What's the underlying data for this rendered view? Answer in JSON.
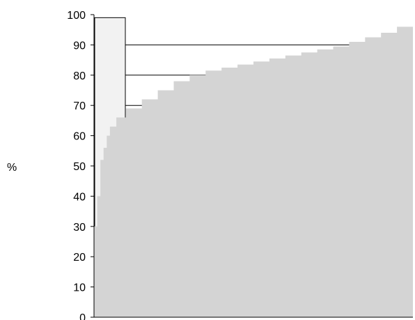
{
  "chart_data": {
    "type": "area",
    "title": "",
    "xlabel": "",
    "ylabel": "%",
    "ylim": [
      0,
      100
    ],
    "yticks": [
      "0",
      "10",
      "20",
      "30",
      "40",
      "50",
      "60",
      "70",
      "80",
      "90",
      "100"
    ],
    "grid": "partial horizontal lines at 70, 80 and 90",
    "fill_color": "#d4d4d4",
    "box_color": "#f2f2f2",
    "reference_bar": {
      "value": 99
    },
    "series": [
      {
        "x": [
          0,
          1,
          2,
          3,
          4,
          5,
          7,
          10,
          15,
          20,
          25,
          30,
          35,
          40,
          45,
          50,
          55,
          60,
          65,
          70,
          75,
          80,
          85,
          90,
          95,
          100
        ],
        "values": [
          30,
          40,
          52,
          56,
          60,
          63,
          66,
          69,
          72,
          75,
          78,
          80,
          81.5,
          82.5,
          83.5,
          84.5,
          85.5,
          86.5,
          87.5,
          88.5,
          89.5,
          91,
          92.5,
          94,
          96,
          100
        ]
      }
    ]
  }
}
